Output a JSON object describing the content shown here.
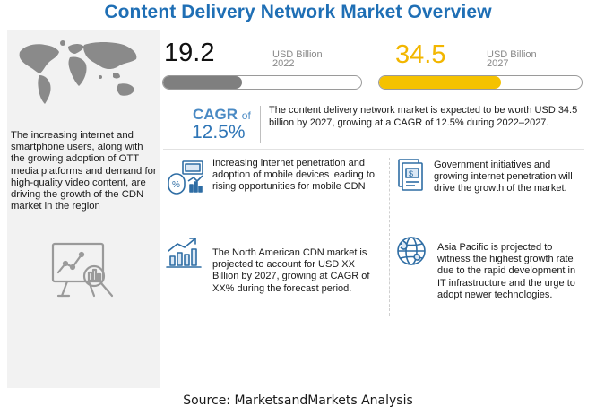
{
  "title": "Content Delivery Network Market Overview",
  "left_panel": {
    "description": "The increasing internet and smartphone users, along with the growing adoption of OTT media platforms and demand for high-quality video content, are driving the growth of the CDN market in the region",
    "map_icon": "world-map-icon",
    "analytics_icon": "analytics-magnifier-icon"
  },
  "market_2022": {
    "value": "19.2",
    "unit": "USD Billion",
    "year": "2022",
    "bar_fill_fraction": 0.4,
    "bar_color": "#7f7f7f"
  },
  "market_2027": {
    "value": "34.5",
    "unit": "USD Billion",
    "year": "2027",
    "bar_fill_fraction": 0.6,
    "bar_color": "#f5c200",
    "value_color": "#f2b600"
  },
  "cagr": {
    "label": "CAGR",
    "of": "of",
    "value": "12.5%"
  },
  "summary": "The content delivery network market is expected to be worth USD 34.5 billion by 2027, growing at a CAGR of 12.5% during 2022–2027.",
  "drivers": [
    {
      "icon": "internet-penetration-icon",
      "text": "Increasing internet penetration and adoption of mobile devices leading to rising opportunities for mobile CDN"
    },
    {
      "icon": "government-money-icon",
      "text": "Government initiatives and growing internet penetration will drive the growth of the market."
    },
    {
      "icon": "growth-chart-icon",
      "text": "The North American CDN market is projected to account for USD XX Billion by 2027, growing at CAGR of XX% during the forecast period."
    },
    {
      "icon": "globe-icon",
      "text": "Asia Pacific is projected to witness the highest growth rate due to the rapid development in IT infrastructure and the urge to adopt newer technologies."
    }
  ],
  "source": "Source: MarketsandMarkets Analysis",
  "colors": {
    "title": "#1f6fb5",
    "cagr": "#2e75b6"
  }
}
